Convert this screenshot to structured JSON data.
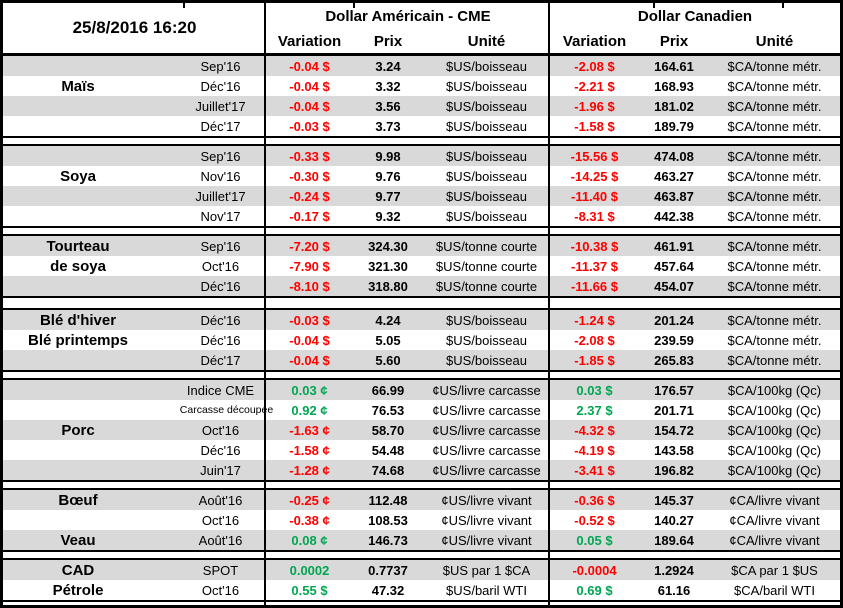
{
  "header": {
    "datetime": "25/8/2016 16:20",
    "us_title": "Dollar Américain - CME",
    "ca_title": "Dollar Canadien",
    "col_variation": "Variation",
    "col_prix": "Prix",
    "col_unite": "Unité"
  },
  "colors": {
    "red": "#FF0000",
    "green": "#00A651",
    "stripe": "#D9D9D9",
    "border": "#000000"
  },
  "sections": [
    {
      "commodity": "Maïs",
      "rows": [
        {
          "name": "",
          "month": "Sep'16",
          "us_var": "-0.04 $",
          "us_dir": "down",
          "us_prix": "3.24",
          "us_unit": "$US/boisseau",
          "ca_var": "-2.08 $",
          "ca_dir": "down",
          "ca_prix": "164.61",
          "ca_unit": "$CA/tonne métr."
        },
        {
          "name": "Maïs",
          "month": "Déc'16",
          "us_var": "-0.04 $",
          "us_dir": "down",
          "us_prix": "3.32",
          "us_unit": "$US/boisseau",
          "ca_var": "-2.21 $",
          "ca_dir": "down",
          "ca_prix": "168.93",
          "ca_unit": "$CA/tonne métr."
        },
        {
          "name": "",
          "month": "Juillet'17",
          "us_var": "-0.04 $",
          "us_dir": "down",
          "us_prix": "3.56",
          "us_unit": "$US/boisseau",
          "ca_var": "-1.96 $",
          "ca_dir": "down",
          "ca_prix": "181.02",
          "ca_unit": "$CA/tonne métr."
        },
        {
          "name": "",
          "month": "Déc'17",
          "us_var": "-0.03 $",
          "us_dir": "down",
          "us_prix": "3.73",
          "us_unit": "$US/boisseau",
          "ca_var": "-1.58 $",
          "ca_dir": "down",
          "ca_prix": "189.79",
          "ca_unit": "$CA/tonne métr."
        }
      ]
    },
    {
      "commodity": "Soya",
      "rows": [
        {
          "name": "",
          "month": "Sep'16",
          "us_var": "-0.33 $",
          "us_dir": "down",
          "us_prix": "9.98",
          "us_unit": "$US/boisseau",
          "ca_var": "-15.56 $",
          "ca_dir": "down",
          "ca_prix": "474.08",
          "ca_unit": "$CA/tonne métr."
        },
        {
          "name": "Soya",
          "month": "Nov'16",
          "us_var": "-0.30 $",
          "us_dir": "down",
          "us_prix": "9.76",
          "us_unit": "$US/boisseau",
          "ca_var": "-14.25 $",
          "ca_dir": "down",
          "ca_prix": "463.27",
          "ca_unit": "$CA/tonne métr."
        },
        {
          "name": "",
          "month": "Juillet'17",
          "us_var": "-0.24 $",
          "us_dir": "down",
          "us_prix": "9.77",
          "us_unit": "$US/boisseau",
          "ca_var": "-11.40 $",
          "ca_dir": "down",
          "ca_prix": "463.87",
          "ca_unit": "$CA/tonne métr."
        },
        {
          "name": "",
          "month": "Nov'17",
          "us_var": "-0.17 $",
          "us_dir": "down",
          "us_prix": "9.32",
          "us_unit": "$US/boisseau",
          "ca_var": "-8.31 $",
          "ca_dir": "down",
          "ca_prix": "442.38",
          "ca_unit": "$CA/tonne métr."
        }
      ]
    },
    {
      "commodity": "Tourteau de soya",
      "rows": [
        {
          "name": "Tourteau",
          "month": "Sep'16",
          "us_var": "-7.20 $",
          "us_dir": "down",
          "us_prix": "324.30",
          "us_unit": "$US/tonne courte",
          "ca_var": "-10.38 $",
          "ca_dir": "down",
          "ca_prix": "461.91",
          "ca_unit": "$CA/tonne métr."
        },
        {
          "name": "de soya",
          "month": "Oct'16",
          "us_var": "-7.90 $",
          "us_dir": "down",
          "us_prix": "321.30",
          "us_unit": "$US/tonne courte",
          "ca_var": "-11.37 $",
          "ca_dir": "down",
          "ca_prix": "457.64",
          "ca_unit": "$CA/tonne métr."
        },
        {
          "name": "",
          "month": "Déc'16",
          "us_var": "-8.10 $",
          "us_dir": "down",
          "us_prix": "318.80",
          "us_unit": "$US/tonne courte",
          "ca_var": "-11.66 $",
          "ca_dir": "down",
          "ca_prix": "454.07",
          "ca_unit": "$CA/tonne métr."
        }
      ]
    },
    {
      "commodity": "Blé",
      "rows": [
        {
          "name": "Blé d'hiver",
          "month": "Déc'16",
          "us_var": "-0.03 $",
          "us_dir": "down",
          "us_prix": "4.24",
          "us_unit": "$US/boisseau",
          "ca_var": "-1.24 $",
          "ca_dir": "down",
          "ca_prix": "201.24",
          "ca_unit": "$CA/tonne métr."
        },
        {
          "name": "Blé printemps",
          "month": "Déc'16",
          "us_var": "-0.04 $",
          "us_dir": "down",
          "us_prix": "5.05",
          "us_unit": "$US/boisseau",
          "ca_var": "-2.08 $",
          "ca_dir": "down",
          "ca_prix": "239.59",
          "ca_unit": "$CA/tonne métr."
        },
        {
          "name": "",
          "month": "Déc'17",
          "us_var": "-0.04 $",
          "us_dir": "down",
          "us_prix": "5.60",
          "us_unit": "$US/boisseau",
          "ca_var": "-1.85 $",
          "ca_dir": "down",
          "ca_prix": "265.83",
          "ca_unit": "$CA/tonne métr."
        }
      ]
    },
    {
      "commodity": "Porc",
      "rows": [
        {
          "name": "",
          "month": "Indice CME",
          "us_var": "0.03 ¢",
          "us_dir": "up",
          "us_prix": "66.99",
          "us_unit": "¢US/livre carcasse",
          "ca_var": "0.03 $",
          "ca_dir": "up",
          "ca_prix": "176.57",
          "ca_unit": "$CA/100kg (Qc)"
        },
        {
          "name": "",
          "month": "Carcasse découpée",
          "month_small": true,
          "us_var": "0.92 ¢",
          "us_dir": "up",
          "us_prix": "76.53",
          "us_unit": "¢US/livre carcasse",
          "ca_var": "2.37 $",
          "ca_dir": "up",
          "ca_prix": "201.71",
          "ca_unit": "$CA/100kg (Qc)"
        },
        {
          "name": "Porc",
          "month": "Oct'16",
          "us_var": "-1.63 ¢",
          "us_dir": "down",
          "us_prix": "58.70",
          "us_unit": "¢US/livre carcasse",
          "ca_var": "-4.32 $",
          "ca_dir": "down",
          "ca_prix": "154.72",
          "ca_unit": "$CA/100kg (Qc)"
        },
        {
          "name": "",
          "month": "Déc'16",
          "us_var": "-1.58 ¢",
          "us_dir": "down",
          "us_prix": "54.48",
          "us_unit": "¢US/livre carcasse",
          "ca_var": "-4.19 $",
          "ca_dir": "down",
          "ca_prix": "143.58",
          "ca_unit": "$CA/100kg (Qc)"
        },
        {
          "name": "",
          "month": "Juin'17",
          "us_var": "-1.28 ¢",
          "us_dir": "down",
          "us_prix": "74.68",
          "us_unit": "¢US/livre carcasse",
          "ca_var": "-3.41 $",
          "ca_dir": "down",
          "ca_prix": "196.82",
          "ca_unit": "$CA/100kg (Qc)"
        }
      ]
    },
    {
      "commodity": "Bœuf / Veau",
      "rows": [
        {
          "name": "Bœuf",
          "month": "Août'16",
          "us_var": "-0.25 ¢",
          "us_dir": "down",
          "us_prix": "112.48",
          "us_unit": "¢US/livre vivant",
          "ca_var": "-0.36 $",
          "ca_dir": "down",
          "ca_prix": "145.37",
          "ca_unit": "¢CA/livre vivant"
        },
        {
          "name": "",
          "month": "Oct'16",
          "us_var": "-0.38 ¢",
          "us_dir": "down",
          "us_prix": "108.53",
          "us_unit": "¢US/livre vivant",
          "ca_var": "-0.52 $",
          "ca_dir": "down",
          "ca_prix": "140.27",
          "ca_unit": "¢CA/livre vivant"
        },
        {
          "name": "Veau",
          "month": "Août'16",
          "us_var": "0.08 ¢",
          "us_dir": "up",
          "us_prix": "146.73",
          "us_unit": "¢US/livre vivant",
          "ca_var": "0.05 $",
          "ca_dir": "up",
          "ca_prix": "189.64",
          "ca_unit": "¢CA/livre vivant"
        }
      ]
    },
    {
      "commodity": "CAD / Pétrole",
      "rows": [
        {
          "name": "CAD",
          "month": "SPOT",
          "us_var": "0.0002",
          "us_dir": "up",
          "us_prix": "0.7737",
          "us_unit": "$US par 1 $CA",
          "ca_var": "-0.0004",
          "ca_dir": "down",
          "ca_prix": "1.2924",
          "ca_unit": "$CA par 1 $US"
        },
        {
          "name": "Pétrole",
          "month": "Oct'16",
          "us_var": "0.55 $",
          "us_dir": "up",
          "us_prix": "47.32",
          "us_unit": "$US/baril WTI",
          "ca_var": "0.69 $",
          "ca_dir": "up",
          "ca_prix": "61.16",
          "ca_unit": "$CA/baril WTI"
        }
      ]
    }
  ]
}
